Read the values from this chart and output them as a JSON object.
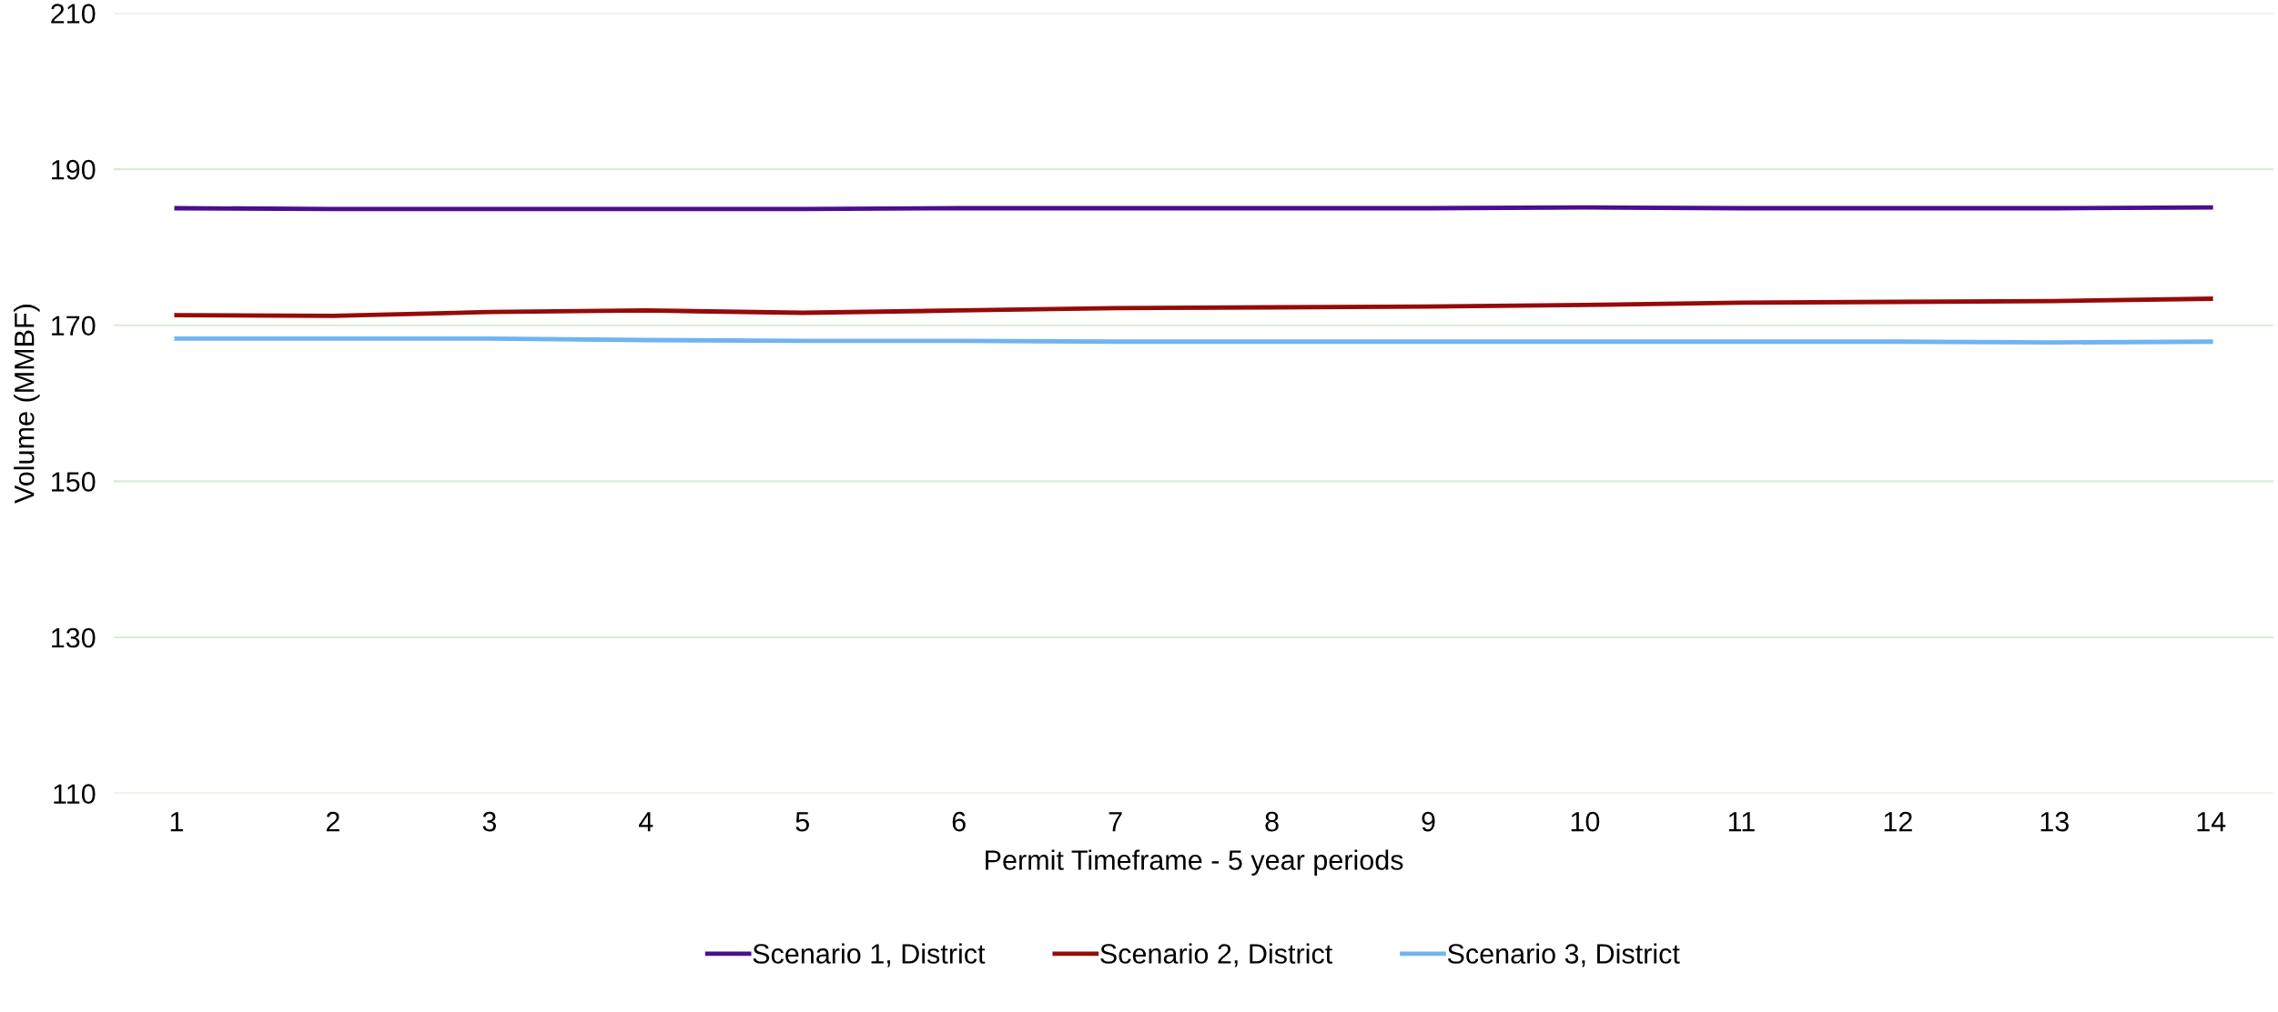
{
  "chart_data": {
    "type": "line",
    "xlabel": "Permit Timeframe - 5 year periods",
    "ylabel": "Volume (MMBF)",
    "categories": [
      "1",
      "2",
      "3",
      "4",
      "5",
      "6",
      "7",
      "8",
      "9",
      "10",
      "11",
      "12",
      "13",
      "14"
    ],
    "series": [
      {
        "name": "Scenario 1, District",
        "color": "#4a0e8f",
        "values": [
          185.0,
          184.9,
          184.9,
          184.9,
          184.9,
          185.0,
          185.0,
          185.0,
          185.0,
          185.1,
          185.0,
          185.0,
          185.0,
          185.1
        ]
      },
      {
        "name": "Scenario 2, District",
        "color": "#960a0a",
        "values": [
          171.3,
          171.2,
          171.7,
          171.9,
          171.6,
          171.9,
          172.2,
          172.3,
          172.4,
          172.6,
          172.9,
          173.0,
          173.1,
          173.4
        ]
      },
      {
        "name": "Scenario 3, District",
        "color": "#70b4f0",
        "values": [
          168.3,
          168.3,
          168.3,
          168.1,
          168.0,
          168.0,
          167.9,
          167.9,
          167.9,
          167.9,
          167.9,
          167.9,
          167.8,
          167.9
        ]
      }
    ],
    "ylim": [
      110,
      210
    ],
    "yticks": [
      110,
      130,
      150,
      170,
      190,
      210
    ],
    "grid": "y",
    "legend": "bottom",
    "marker": "none",
    "line_style": "solid"
  }
}
